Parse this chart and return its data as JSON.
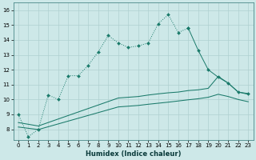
{
  "xlabel": "Humidex (Indice chaleur)",
  "bg_color": "#cde8e8",
  "grid_color": "#b0d0d0",
  "line_color": "#1a7a6a",
  "ylim": [
    7.3,
    16.5
  ],
  "xlim": [
    -0.5,
    23.5
  ],
  "yticks": [
    8,
    9,
    10,
    11,
    12,
    13,
    14,
    15,
    16
  ],
  "xticks": [
    0,
    1,
    2,
    3,
    4,
    5,
    6,
    7,
    8,
    9,
    10,
    11,
    12,
    13,
    14,
    15,
    16,
    17,
    18,
    19,
    20,
    21,
    22,
    23
  ],
  "dotted_x": [
    0,
    1,
    2,
    3,
    4,
    5,
    6,
    7,
    8,
    9,
    10,
    11,
    12,
    13,
    14,
    15,
    16,
    17
  ],
  "dotted_y": [
    9.0,
    7.5,
    8.0,
    10.3,
    10.0,
    11.6,
    11.6,
    12.3,
    13.2,
    14.3,
    13.8,
    13.5,
    13.6,
    13.8,
    15.1,
    15.7,
    14.5,
    14.8
  ],
  "solid_x": [
    17,
    18,
    19,
    20,
    21,
    22,
    23
  ],
  "solid_y": [
    14.8,
    13.3,
    12.0,
    11.5,
    11.1,
    10.5,
    10.4
  ],
  "smooth1_x": [
    0,
    2,
    10,
    11,
    12,
    13,
    14,
    15,
    16,
    17,
    18,
    19,
    20,
    21,
    22,
    23
  ],
  "smooth1_y": [
    8.45,
    8.22,
    10.1,
    10.15,
    10.2,
    10.3,
    10.38,
    10.45,
    10.5,
    10.6,
    10.65,
    10.75,
    11.55,
    11.1,
    10.5,
    10.35
  ],
  "smooth2_x": [
    0,
    2,
    10,
    11,
    12,
    13,
    14,
    15,
    16,
    17,
    18,
    19,
    20,
    21,
    22,
    23
  ],
  "smooth2_y": [
    8.15,
    7.98,
    9.5,
    9.55,
    9.6,
    9.68,
    9.75,
    9.82,
    9.9,
    9.98,
    10.05,
    10.15,
    10.35,
    10.2,
    10.0,
    9.85
  ]
}
